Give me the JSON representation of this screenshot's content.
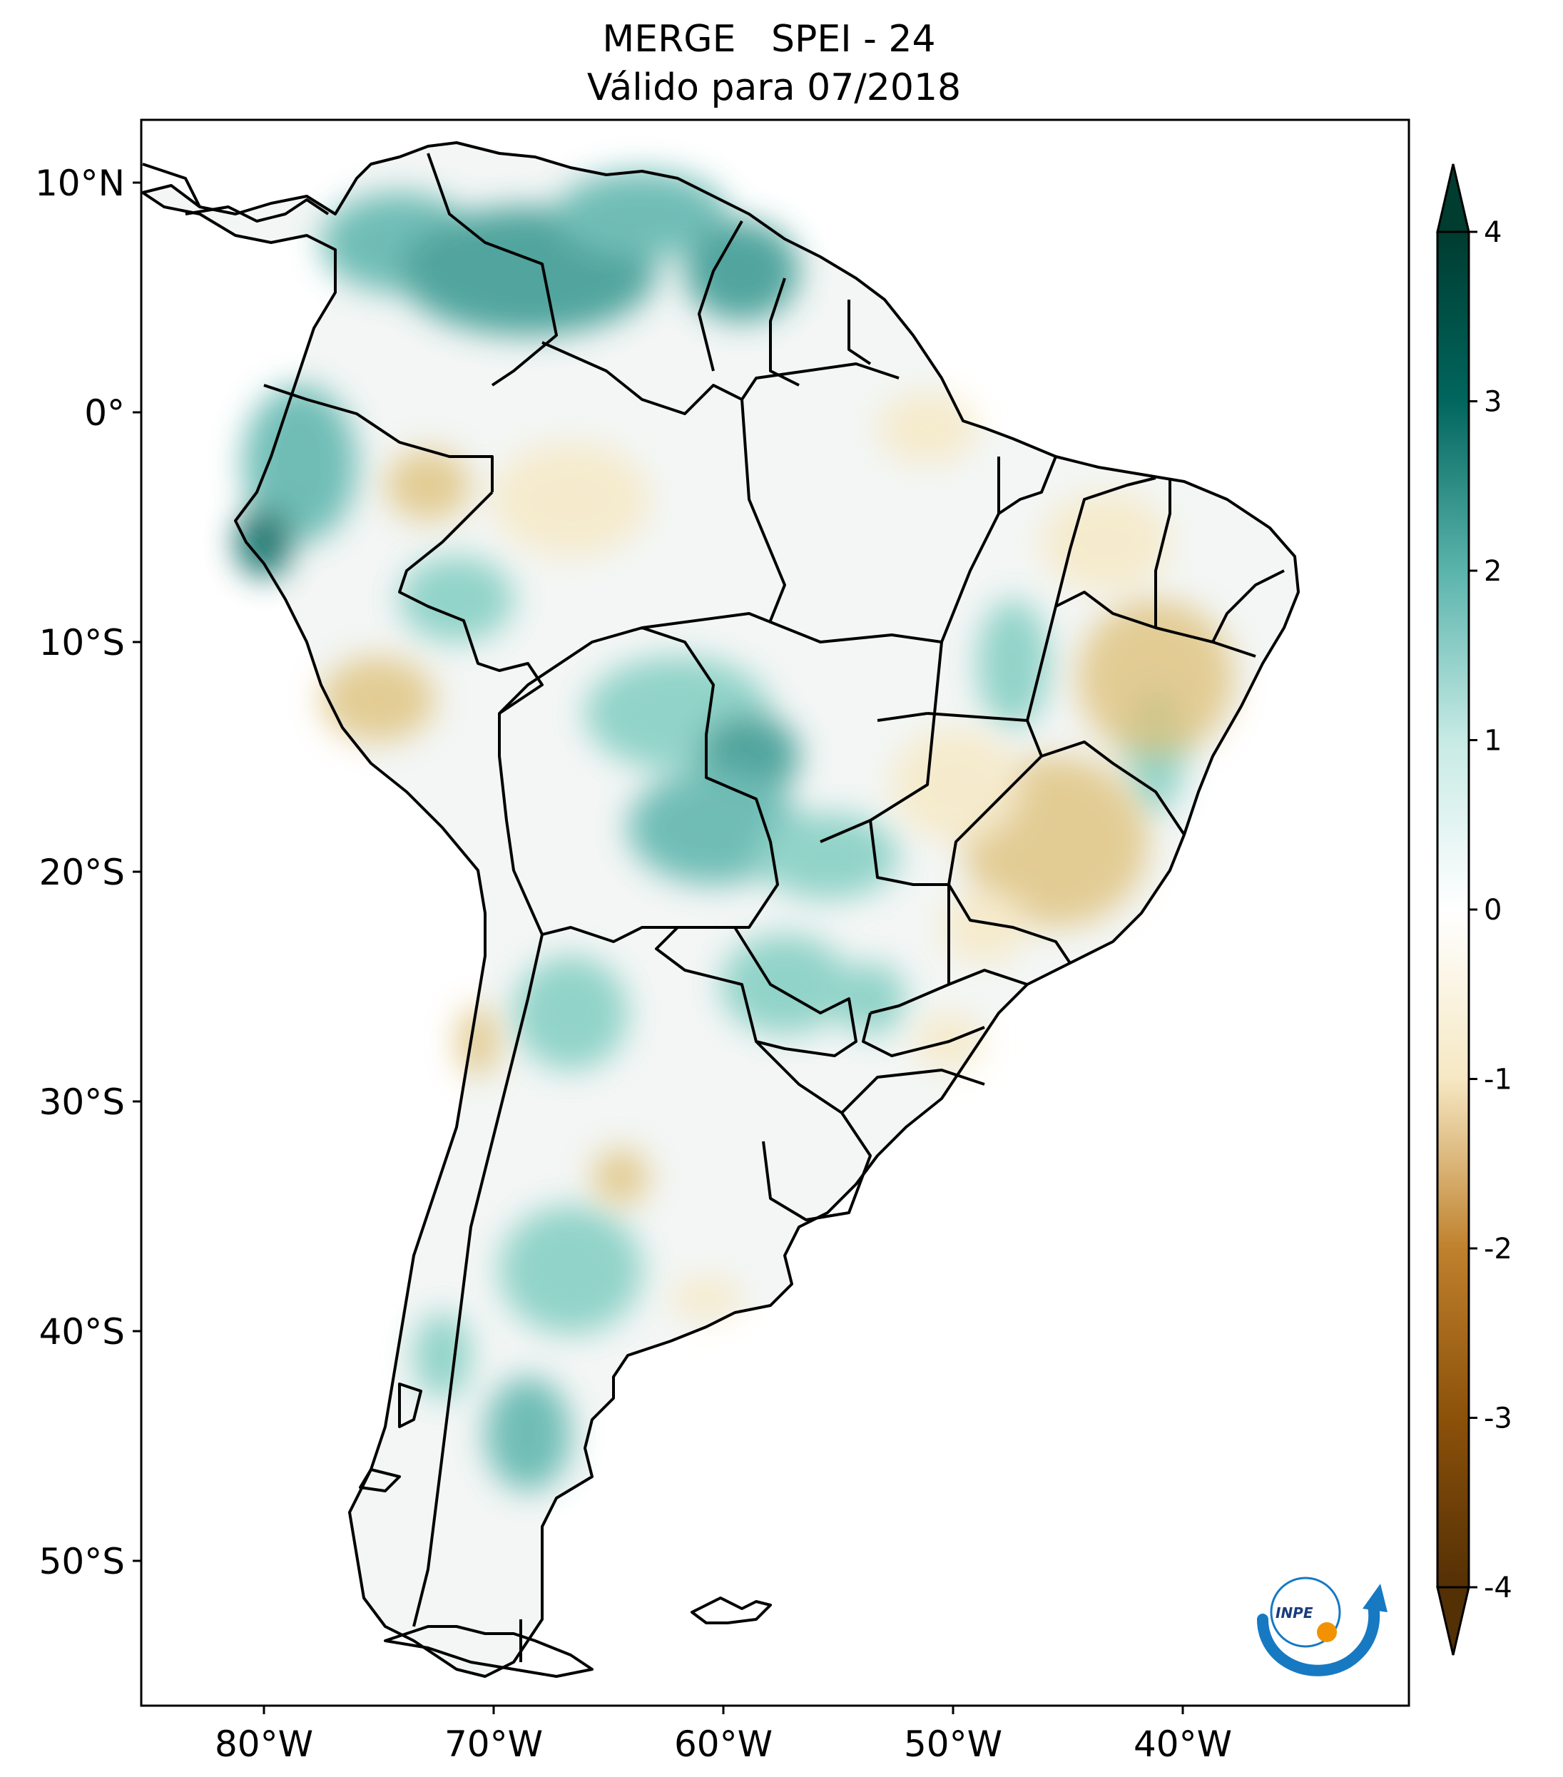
{
  "title": {
    "line1": "MERGE   SPEI - 24",
    "line2": "Válido para 07/2018"
  },
  "map": {
    "lon_ticks": [
      "80°W",
      "70°W",
      "60°W",
      "50°W",
      "40°W"
    ],
    "lat_ticks": [
      "10°N",
      "0°",
      "10°S",
      "20°S",
      "30°S",
      "40°S",
      "50°S"
    ],
    "colors": {
      "dry_strong": "#543005",
      "dry": "#bf812d",
      "dry_light": "#f6e8c3",
      "neutral": "#f5f5f5",
      "wet_light": "#c7eae5",
      "wet": "#35978f",
      "wet_strong": "#003c30",
      "border": "#000000"
    }
  },
  "colorbar": {
    "ticks": [
      "4",
      "3",
      "2",
      "1",
      "0",
      "-1",
      "-2",
      "-3",
      "-4"
    ],
    "extend": "both"
  },
  "logo": {
    "text": "INPE"
  }
}
